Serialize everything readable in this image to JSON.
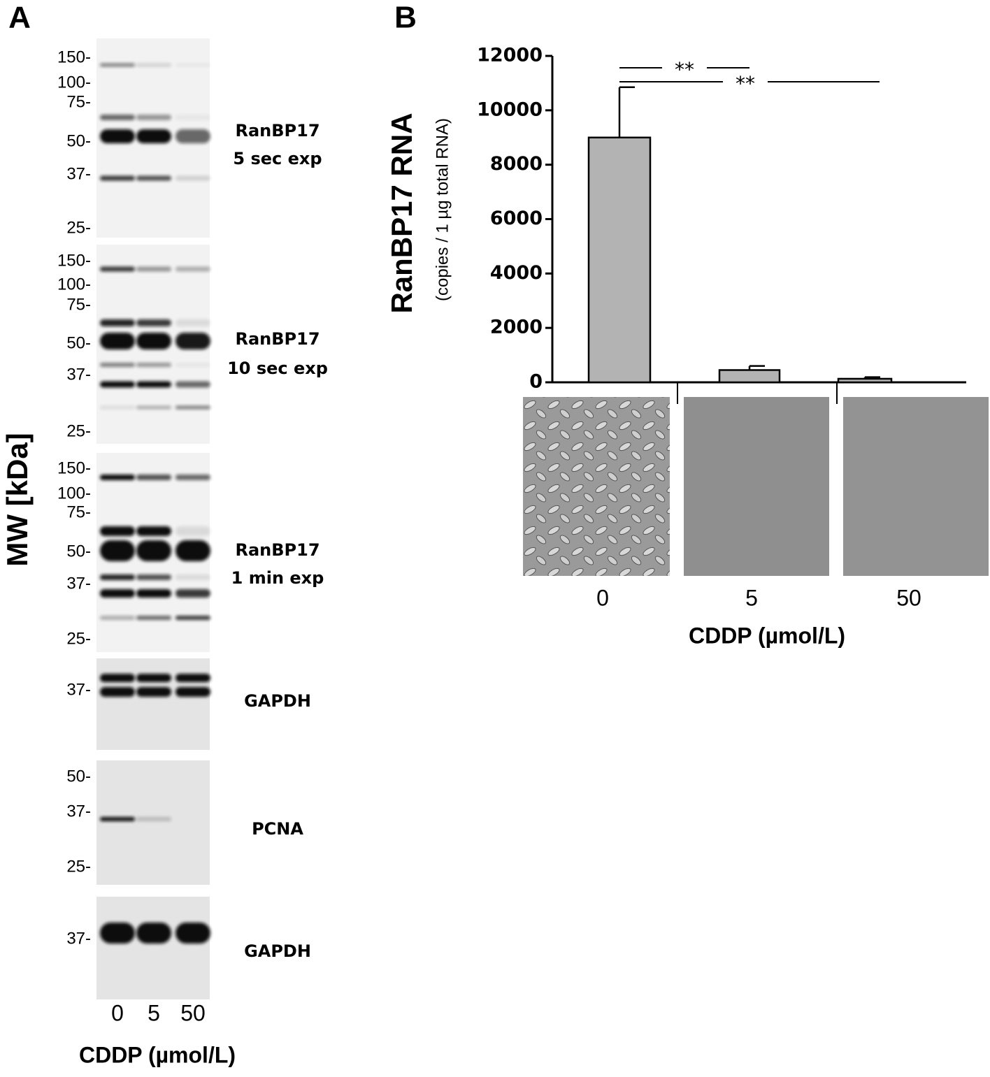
{
  "panel_a": {
    "label": "A",
    "ylabel": "MW [kDa]",
    "blots": [
      {
        "ticks": [
          "150-",
          "100-",
          "75-",
          "50-",
          "37-",
          "25-"
        ],
        "label": [
          "RanBP17",
          "5 sec exp"
        ]
      },
      {
        "ticks": [
          "150-",
          "100-",
          "75-",
          "50-",
          "37-",
          "25-"
        ],
        "label": [
          "RanBP17",
          "10 sec exp"
        ]
      },
      {
        "ticks": [
          "150-",
          "100-",
          "75-",
          "50-",
          "37-",
          "25-"
        ],
        "label": [
          "RanBP17",
          "1 min exp"
        ]
      },
      {
        "ticks": [
          "37-"
        ],
        "label": [
          "GAPDH"
        ]
      },
      {
        "ticks": [
          "50-",
          "37-",
          "25-"
        ],
        "label": [
          "PCNA"
        ]
      },
      {
        "ticks": [
          "37-"
        ],
        "label": [
          "GAPDH"
        ]
      }
    ],
    "lanes": [
      "0",
      "5",
      "50"
    ],
    "xlabel": "CDDP (µmol/L)"
  },
  "chart_data": {
    "type": "bar",
    "label": "B",
    "ylabel": "RanBP17 RNA",
    "ylabel_sub": "(copies / 1 µg total RNA)",
    "xlabel": "CDDP (µmol/L)",
    "categories": [
      "0",
      "5",
      "50"
    ],
    "values": [
      9000,
      450,
      130
    ],
    "errors": [
      1850,
      150,
      60
    ],
    "color": "#b3b3b3",
    "ylim": [
      0,
      12000
    ],
    "yticks": [
      0,
      2000,
      4000,
      6000,
      8000,
      10000,
      12000
    ],
    "annotations": [
      "**",
      "**"
    ]
  }
}
